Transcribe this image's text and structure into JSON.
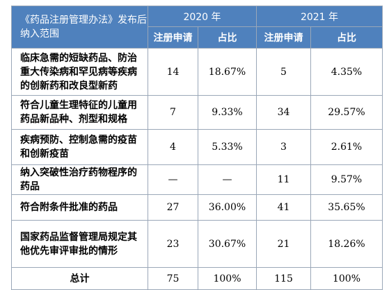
{
  "header": {
    "category": "《药品注册管理办法》发布后纳入范围",
    "year_2020": "2020 年",
    "year_2021": "2021 年",
    "reg_2020": "注册申请",
    "share_2020": "占比",
    "reg_2021": "注册申请",
    "share_2021": "占比"
  },
  "rows": [
    {
      "label": "临床急需的短缺药品、防治重大传染病和罕见病等疾病的创新药和改良型新药",
      "reg_2020": "14",
      "share_2020": "18.67%",
      "reg_2021": "5",
      "share_2021": "4.35%"
    },
    {
      "label": "符合儿童生理特征的儿童用药品新品种、剂型和规格",
      "reg_2020": "7",
      "share_2020": "9.33%",
      "reg_2021": "34",
      "share_2021": "29.57%"
    },
    {
      "label": "疾病预防、控制急需的疫苗和创新疫苗",
      "reg_2020": "4",
      "share_2020": "5.33%",
      "reg_2021": "3",
      "share_2021": "2.61%"
    },
    {
      "label": "纳入突破性治疗药物程序的药品",
      "reg_2020": "—",
      "share_2020": "—",
      "reg_2021": "11",
      "share_2021": "9.57%"
    },
    {
      "label": "符合附条件批准的药品",
      "reg_2020": "27",
      "share_2020": "36.00%",
      "reg_2021": "41",
      "share_2021": "35.65%"
    },
    {
      "label": "国家药品监督管理局规定其他优先审评审批的情形",
      "reg_2020": "23",
      "share_2020": "30.67%",
      "reg_2021": "21",
      "share_2021": "18.26%"
    },
    {
      "label": "总计",
      "reg_2020": "75",
      "share_2020": "100%",
      "reg_2021": "115",
      "share_2021": "100%"
    }
  ]
}
